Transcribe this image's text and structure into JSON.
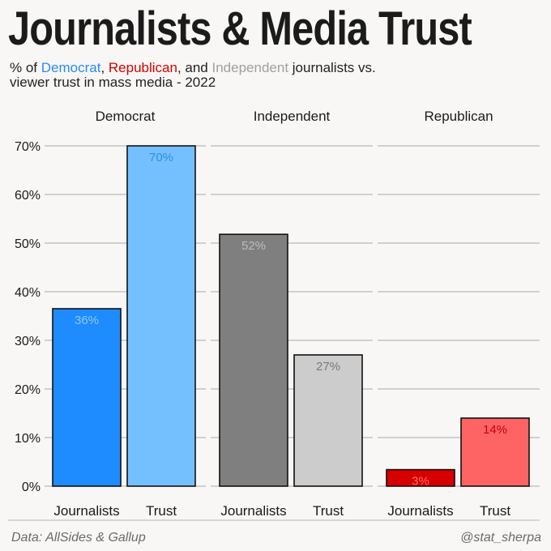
{
  "header": {
    "title": "Journalists & Media Trust",
    "subtitle_prefix": "% of ",
    "subtitle_dem": "Democrat",
    "subtitle_sep1": ", ",
    "subtitle_rep": "Republican",
    "subtitle_sep2": ", and ",
    "subtitle_ind": "Independent",
    "subtitle_suffix": " journalists vs.",
    "subtitle_line2": "viewer trust in mass media -  2022"
  },
  "footer": {
    "source": "Data: AllSides & Gallup",
    "handle": "@stat_sherpa"
  },
  "chart_data": {
    "type": "bar",
    "ylim": [
      0,
      70
    ],
    "yticks": [
      "0%",
      "10%",
      "20%",
      "30%",
      "40%",
      "50%",
      "60%",
      "70%"
    ],
    "grid": true,
    "facets": [
      {
        "name": "Democrat",
        "categories": [
          "Journalists",
          "Trust"
        ],
        "values": [
          36.5,
          70
        ],
        "labels": [
          "36%",
          "70%"
        ],
        "colors": [
          "#1e8cff",
          "#74c0ff"
        ],
        "label_colors": [
          "#8fc6ff",
          "#2f8fe0"
        ]
      },
      {
        "name": "Independent",
        "categories": [
          "Journalists",
          "Trust"
        ],
        "values": [
          51.8,
          27
        ],
        "labels": [
          "52%",
          "27%"
        ],
        "colors": [
          "#7f7f7f",
          "#cccccc"
        ],
        "label_colors": [
          "#bdbdbd",
          "#7a7a7a"
        ]
      },
      {
        "name": "Republican",
        "categories": [
          "Journalists",
          "Trust"
        ],
        "values": [
          3.4,
          14
        ],
        "labels": [
          "3%",
          "14%"
        ],
        "colors": [
          "#d70000",
          "#ff6464"
        ],
        "label_colors": [
          "#ff6b6b",
          "#c80000"
        ]
      }
    ]
  }
}
